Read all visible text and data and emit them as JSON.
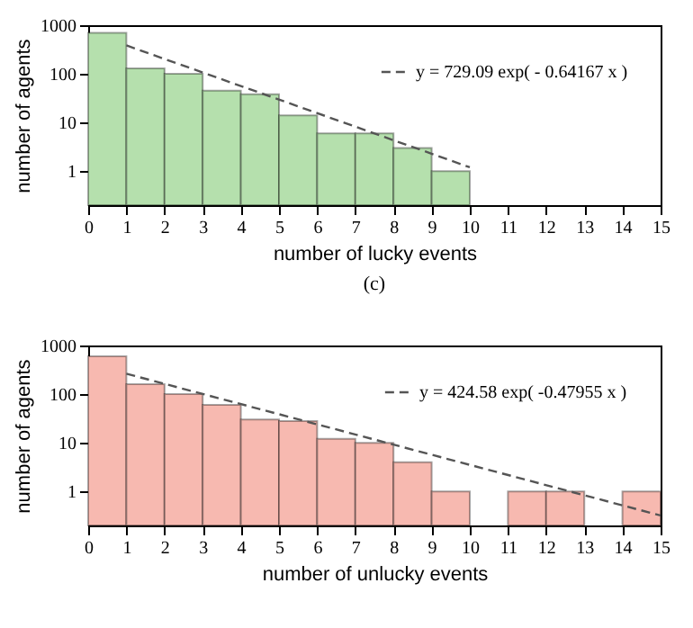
{
  "chart_data": [
    {
      "type": "histogram",
      "xlabel": "number of lucky events",
      "ylabel": "number of agents",
      "annotations": [
        "(c)"
      ],
      "bins": [
        0,
        1,
        2,
        3,
        4,
        5,
        6,
        7,
        8,
        9,
        10
      ],
      "values": [
        700,
        130,
        100,
        45,
        38,
        14,
        6,
        6,
        3,
        1
      ],
      "color": "#b5e0ad",
      "xlim": [
        0,
        15
      ],
      "xticks": [
        0,
        1,
        2,
        3,
        4,
        5,
        6,
        7,
        8,
        9,
        10,
        11,
        12,
        13,
        14,
        15
      ],
      "ylim": [
        0.2,
        1000
      ],
      "yticks": [
        1,
        10,
        100,
        1000
      ],
      "log": "y",
      "legend": "top right",
      "line_style": "dashed",
      "series": [
        {
          "type": "line",
          "name": "y = 729.09 exp( - 0.64167 x )",
          "color": "#555555",
          "x": [
            1,
            10
          ],
          "values": [
            384,
            1.2
          ]
        }
      ]
    },
    {
      "type": "histogram",
      "xlabel": "number of unlucky events",
      "ylabel": "number of agents",
      "bins": [
        0,
        1,
        2,
        3,
        4,
        5,
        6,
        7,
        8,
        9,
        10,
        11,
        12,
        13,
        14,
        15
      ],
      "values": [
        600,
        160,
        100,
        60,
        30,
        28,
        12,
        10,
        4,
        1,
        null,
        1,
        1,
        null,
        1
      ],
      "color": "#f7b9b0",
      "xlim": [
        0,
        15
      ],
      "xticks": [
        0,
        1,
        2,
        3,
        4,
        5,
        6,
        7,
        8,
        9,
        10,
        11,
        12,
        13,
        14,
        15
      ],
      "ylim": [
        0.2,
        1000
      ],
      "yticks": [
        1,
        10,
        100,
        1000
      ],
      "log": "y",
      "legend": "top right",
      "line_style": "dashed",
      "series": [
        {
          "type": "line",
          "name": "y = 424.58 exp( -0.47955 x )",
          "color": "#555555",
          "x": [
            1,
            15
          ],
          "values": [
            263,
            0.32
          ]
        }
      ]
    }
  ]
}
